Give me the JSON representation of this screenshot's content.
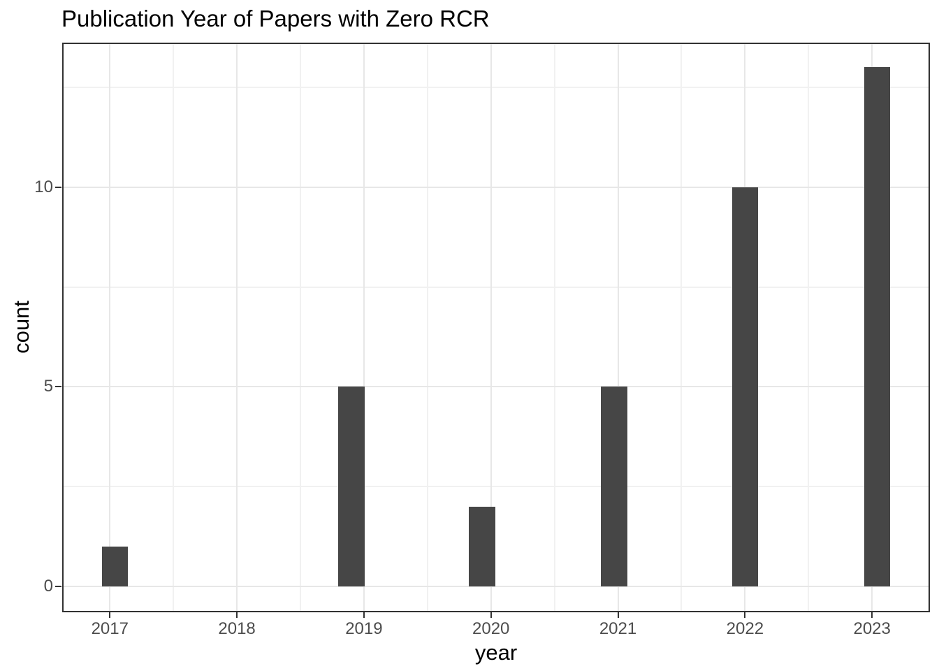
{
  "chart_data": {
    "type": "bar",
    "geom": "histogram",
    "title": "Publication Year of Papers with Zero RCR",
    "xlabel": "year",
    "ylabel": "count",
    "categories": [
      "2017",
      "2018",
      "2019",
      "2020",
      "2021",
      "2022",
      "2023"
    ],
    "values": [
      1,
      0,
      5,
      2,
      5,
      10,
      13
    ],
    "x_ticks": [
      2017,
      2018,
      2019,
      2020,
      2021,
      2022,
      2023
    ],
    "y_ticks": [
      0,
      5,
      10
    ],
    "y_tick_labels": [
      "0",
      "5",
      "10"
    ],
    "x_minor_gridlines": [
      2017.5,
      2018.5,
      2019.5,
      2020.5,
      2021.5,
      2022.5
    ],
    "y_minor_gridlines": [
      2.5,
      7.5,
      12.5
    ],
    "x_range": [
      2016.63,
      2023.45
    ],
    "y_range": [
      -0.63,
      13.6
    ],
    "bar_width_years": 0.207,
    "bars": [
      {
        "year": 2017,
        "count": 1,
        "center": 2017.04
      },
      {
        "year": 2019,
        "count": 5,
        "center": 2018.9
      },
      {
        "year": 2020,
        "count": 2,
        "center": 2019.93
      },
      {
        "year": 2021,
        "count": 5,
        "center": 2020.97
      },
      {
        "year": 2022,
        "count": 10,
        "center": 2022.0
      },
      {
        "year": 2023,
        "count": 13,
        "center": 2023.04
      }
    ],
    "legend": "none",
    "grid": true,
    "colors": {
      "bar_fill": "#464646",
      "grid_major": "#E7E7E7",
      "grid_minor": "#F1F1F1",
      "panel_border": "#323232",
      "tick_mark": "#333333",
      "tick_label": "#4D4D4D",
      "title": "#000000",
      "axis_title": "#000000",
      "background": "#FFFFFF"
    }
  }
}
